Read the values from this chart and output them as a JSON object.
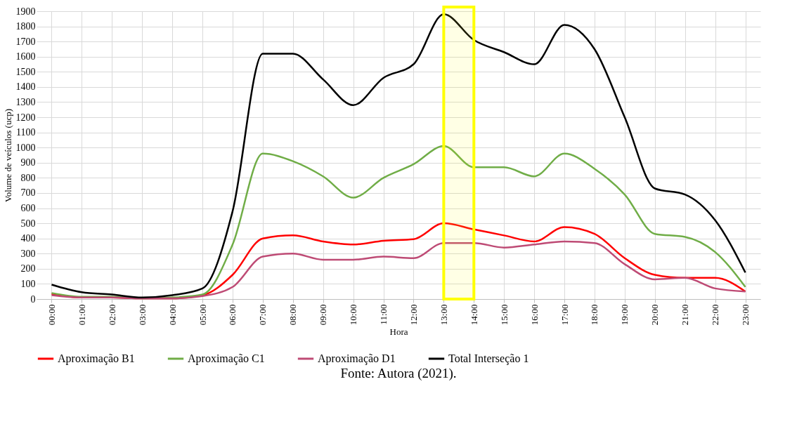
{
  "chart_data": {
    "type": "line",
    "xlabel": "Hora",
    "ylabel": "Volume de veículos (ucp)",
    "categories": [
      "00:00",
      "01:00",
      "02:00",
      "03:00",
      "04:00",
      "05:00",
      "06:00",
      "07:00",
      "08:00",
      "09:00",
      "10:00",
      "11:00",
      "12:00",
      "13:00",
      "14:00",
      "15:00",
      "16:00",
      "17:00",
      "18:00",
      "19:00",
      "20:00",
      "21:00",
      "22:00",
      "23:00"
    ],
    "series": [
      {
        "name": "Aproximação B1",
        "color": "#ff0000",
        "values": [
          35,
          10,
          10,
          5,
          5,
          25,
          160,
          400,
          420,
          380,
          360,
          385,
          395,
          500,
          460,
          420,
          380,
          475,
          430,
          270,
          160,
          140,
          140,
          50
        ]
      },
      {
        "name": "Aproximação C1",
        "color": "#70ad47",
        "values": [
          40,
          15,
          15,
          5,
          10,
          30,
          360,
          960,
          910,
          810,
          670,
          800,
          890,
          1010,
          870,
          870,
          810,
          960,
          860,
          690,
          430,
          410,
          310,
          80
        ]
      },
      {
        "name": "Aproximação D1",
        "color": "#be4b75",
        "values": [
          25,
          10,
          10,
          5,
          5,
          20,
          80,
          280,
          300,
          260,
          260,
          280,
          270,
          370,
          370,
          340,
          360,
          380,
          370,
          230,
          130,
          140,
          70,
          50
        ]
      },
      {
        "name": "Total Interseção 1",
        "color": "#000000",
        "values": [
          95,
          45,
          30,
          10,
          25,
          70,
          580,
          1620,
          1620,
          1450,
          1280,
          1460,
          1550,
          1880,
          1710,
          1630,
          1550,
          1810,
          1650,
          1200,
          730,
          690,
          520,
          175
        ]
      }
    ],
    "ylim": [
      0,
      1900
    ],
    "yticks": [
      0,
      100,
      200,
      300,
      400,
      500,
      600,
      700,
      800,
      900,
      1000,
      1100,
      1200,
      1300,
      1400,
      1500,
      1600,
      1700,
      1800,
      1900
    ],
    "grid": true,
    "legend": "bottom",
    "line_style": "solid",
    "bands": [
      {
        "axis": "x",
        "from": "13:00",
        "to": "14:00",
        "color": "#ffff00"
      }
    ],
    "annotations": [
      "Fonte: Autora (2021)."
    ]
  }
}
